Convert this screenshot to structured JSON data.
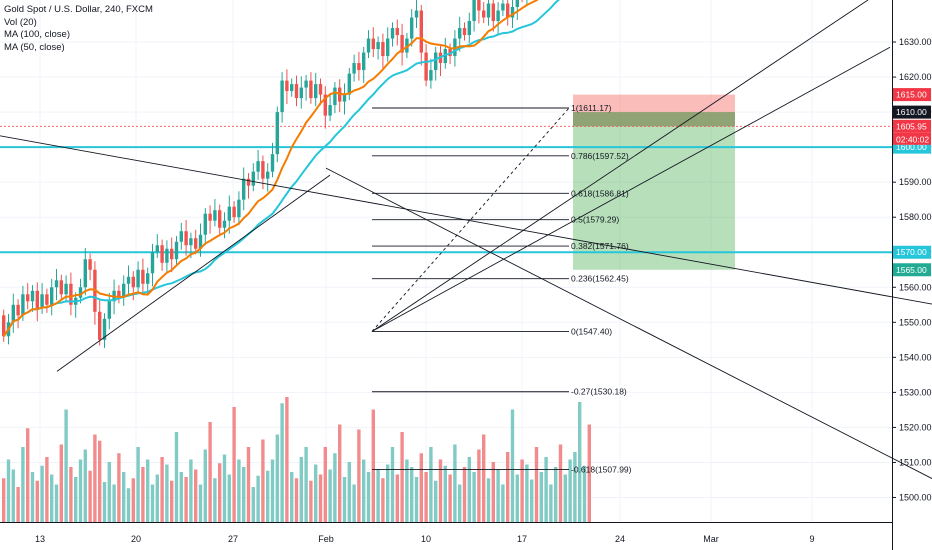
{
  "header": {
    "title": "Gold Spot / U.S. Dollar, 240, FXCM",
    "indicators": [
      "Vol (20)",
      "MA (100, close)",
      "MA (50, close)"
    ]
  },
  "colors": {
    "up": "#26a69a",
    "down": "#ef5350",
    "vol_up": "#80cbc4",
    "vol_down": "#f28b8b",
    "ma50": "#f57c00",
    "ma100": "#26c6da",
    "hline": "#26c6da",
    "entry": "#ef5350",
    "tag_red": "#f23645",
    "tag_green": "#22ab94",
    "tag_cyan": "#26c6da",
    "tag_dark": "#131722",
    "profit": "#4caf50",
    "loss": "#f44336"
  },
  "chart_data": {
    "type": "candlestick",
    "title": "Gold Spot / U.S. Dollar, 240, FXCM",
    "ylim": [
      1493,
      1642
    ],
    "y_ticks": [
      1500,
      1510,
      1520,
      1530,
      1540,
      1550,
      1560,
      1570,
      1580,
      1590,
      1600,
      1610,
      1620,
      1630
    ],
    "x_ticks": [
      "13",
      "20",
      "27",
      "Feb",
      "10",
      "17",
      "24",
      "Mar",
      "9"
    ],
    "price_tags": [
      {
        "value": 1615.0,
        "label": "1615.00",
        "color": "tag_red"
      },
      {
        "value": 1610.0,
        "label": "1610.00",
        "color": "tag_dark"
      },
      {
        "value": 1605.95,
        "label": "1605.95",
        "color": "tag_red"
      },
      {
        "value": 1600.0,
        "label": "1600.00",
        "color": "tag_cyan"
      },
      {
        "value": 1570.0,
        "label": "1570.00",
        "color": "tag_cyan"
      },
      {
        "value": 1565.0,
        "label": "1565.00",
        "color": "tag_green"
      }
    ],
    "countdown": "02:40:02",
    "horizontal_lines": [
      1600.0,
      1570.0
    ],
    "fibonacci": {
      "levels": [
        {
          "value": 1611.17,
          "label": "1(1611.17)"
        },
        {
          "value": 1597.52,
          "label": "0.786(1597.52)"
        },
        {
          "value": 1586.81,
          "label": "0.618(1586.81)"
        },
        {
          "value": 1579.29,
          "label": "0.5(1579.29)"
        },
        {
          "value": 1571.76,
          "label": "0.382(1571.76)"
        },
        {
          "value": 1562.45,
          "label": "0.236(1562.45)"
        },
        {
          "value": 1547.4,
          "label": "0(1547.40)"
        },
        {
          "value": 1530.18,
          "label": "-0.27(1530.18)"
        },
        {
          "value": 1507.99,
          "label": "-0.618(1507.99)"
        }
      ]
    },
    "position": {
      "entry": 1605.95,
      "stop": 1615.0,
      "target": 1565.0
    },
    "trendlines": [
      {
        "x1": -5,
        "y1": 1603.5,
        "x2": 932,
        "y2": 1555.2
      },
      {
        "x1": 57,
        "y1": 1536,
        "x2": 330,
        "y2": 1592
      },
      {
        "x1": 326,
        "y1": 1594,
        "x2": 932,
        "y2": 1505.4
      },
      {
        "x1": 372,
        "y1": 1547.4,
        "x2": 868,
        "y2": 1642
      },
      {
        "x1": 372,
        "y1": 1547.4,
        "x2": 890,
        "y2": 1628.5
      }
    ],
    "fib_diagonal": {
      "x1": 372,
      "y1": 1547.4,
      "x2": 569,
      "y2": 1611.17
    },
    "candles": {
      "x_start": 2,
      "x_step": 4.8,
      "open_start": 1552,
      "moves": [
        -6,
        4,
        5,
        -3,
        6,
        -2,
        3,
        -5,
        4,
        -3,
        5,
        2,
        -4,
        3,
        -6,
        2,
        3,
        8,
        -3,
        -12,
        -8,
        6,
        5,
        3,
        -2,
        4,
        2,
        -3,
        5,
        -4,
        3,
        6,
        2,
        -5,
        4,
        -3,
        5,
        3,
        -4,
        2,
        -3,
        4,
        6,
        -2,
        3,
        -5,
        2,
        4,
        -3,
        5,
        6,
        -2,
        4,
        3,
        -5,
        2,
        5,
        12,
        9,
        -3,
        2,
        -4,
        3,
        2,
        -5,
        4,
        -3,
        -6,
        3,
        5,
        -4,
        2,
        6,
        3,
        -2,
        5,
        4,
        -3,
        2,
        -4,
        5,
        3,
        -2,
        -5,
        4,
        6,
        2,
        -12,
        -8,
        3,
        5,
        -3,
        4,
        -2,
        5,
        3,
        -2,
        4,
        6,
        -3,
        -2,
        4,
        -5,
        3,
        2,
        -4,
        3,
        5,
        -2,
        4,
        3,
        -3,
        2,
        4,
        5,
        2,
        -2,
        5,
        6,
        7,
        4,
        3,
        -2
      ]
    },
    "volume_bars": {
      "x_start": 2,
      "x_step": 4.8,
      "ratios": [
        0.35,
        0.5,
        0.42,
        0.28,
        0.6,
        0.75,
        0.4,
        0.33,
        0.45,
        0.52,
        0.38,
        0.3,
        0.62,
        0.9,
        0.44,
        0.36,
        0.5,
        0.58,
        0.41,
        0.7,
        0.65,
        0.32,
        0.48,
        0.3,
        0.55,
        0.4,
        0.27,
        0.35,
        0.6,
        0.44,
        0.5,
        0.3,
        0.38,
        0.52,
        0.46,
        0.33,
        0.72,
        0.4,
        0.36,
        0.5,
        0.42,
        0.3,
        0.58,
        0.8,
        0.35,
        0.47,
        0.54,
        0.38,
        0.92,
        0.5,
        0.44,
        0.6,
        0.28,
        0.37,
        0.66,
        0.41,
        0.5,
        0.7,
        0.95,
        1.0,
        0.4,
        0.35,
        0.52,
        0.6,
        0.33,
        0.46,
        0.38,
        0.6,
        0.42,
        0.55,
        0.78,
        0.36,
        0.48,
        0.3,
        0.74,
        0.5,
        0.4,
        0.9,
        0.42,
        0.35,
        0.46,
        0.6,
        0.38,
        0.72,
        0.5,
        0.44,
        0.36,
        0.55,
        0.4,
        0.6,
        0.33,
        0.5,
        0.45,
        0.38,
        0.62,
        0.3,
        0.44,
        0.52,
        0.4,
        0.58,
        0.7,
        0.35,
        0.48,
        0.42,
        0.3,
        0.56,
        0.9,
        0.38,
        0.5,
        0.46,
        0.34,
        0.6,
        0.4,
        0.52,
        0.3,
        0.44,
        0.62,
        0.38,
        0.5,
        0.56,
        0.96,
        0.45,
        0.78
      ]
    }
  }
}
